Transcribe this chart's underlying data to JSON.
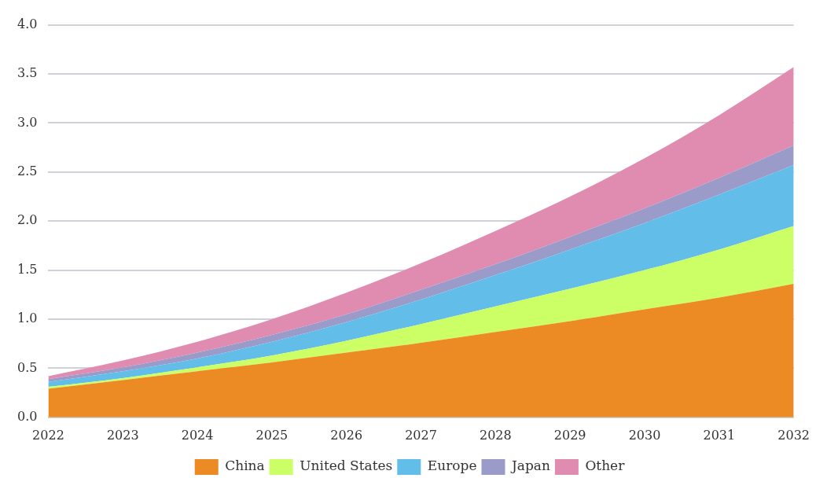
{
  "chart_data": {
    "type": "area",
    "stacked": true,
    "categories": [
      "2022",
      "2023",
      "2024",
      "2025",
      "2026",
      "2027",
      "2028",
      "2029",
      "2030",
      "2031",
      "2032"
    ],
    "series": [
      {
        "name": "China",
        "color": "#ec8a24",
        "values": [
          0.29,
          0.38,
          0.47,
          0.56,
          0.66,
          0.76,
          0.87,
          0.98,
          1.1,
          1.22,
          1.36
        ]
      },
      {
        "name": "United States",
        "color": "#ccff66",
        "values": [
          0.02,
          0.02,
          0.04,
          0.07,
          0.12,
          0.19,
          0.26,
          0.33,
          0.4,
          0.49,
          0.59
        ]
      },
      {
        "name": "Europe",
        "color": "#63bde9",
        "values": [
          0.05,
          0.07,
          0.09,
          0.14,
          0.19,
          0.25,
          0.32,
          0.4,
          0.48,
          0.56,
          0.62
        ]
      },
      {
        "name": "Japan",
        "color": "#9b9bca",
        "values": [
          0.03,
          0.04,
          0.06,
          0.07,
          0.08,
          0.1,
          0.11,
          0.13,
          0.15,
          0.17,
          0.2
        ]
      },
      {
        "name": "Other",
        "color": "#e08cb1",
        "values": [
          0.03,
          0.07,
          0.11,
          0.16,
          0.22,
          0.27,
          0.34,
          0.41,
          0.51,
          0.64,
          0.8
        ]
      }
    ],
    "ylim": [
      0,
      4
    ],
    "yticks": [
      {
        "value": 0,
        "label": "0.0"
      },
      {
        "value": 0.5,
        "label": "0.5"
      },
      {
        "value": 1,
        "label": "1.0"
      },
      {
        "value": 1.5,
        "label": "1.5"
      },
      {
        "value": 2,
        "label": "2.0"
      },
      {
        "value": 2.5,
        "label": "2.5"
      },
      {
        "value": 3,
        "label": "3.0"
      },
      {
        "value": 3.5,
        "label": "3.5"
      },
      {
        "value": 4,
        "label": "4.0"
      }
    ],
    "grid": "y",
    "legend": "bottom"
  }
}
